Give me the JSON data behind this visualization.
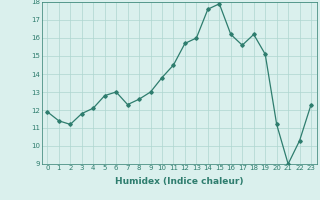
{
  "x": [
    0,
    1,
    2,
    3,
    4,
    5,
    6,
    7,
    8,
    9,
    10,
    11,
    12,
    13,
    14,
    15,
    16,
    17,
    18,
    19,
    20,
    21,
    22,
    23
  ],
  "y": [
    11.9,
    11.4,
    11.2,
    11.8,
    12.1,
    12.8,
    13.0,
    12.3,
    12.6,
    13.0,
    13.8,
    14.5,
    15.7,
    16.0,
    17.6,
    17.9,
    16.2,
    15.6,
    16.2,
    15.1,
    11.2,
    9.0,
    10.3,
    12.3
  ],
  "line_color": "#2e7d6e",
  "marker": "D",
  "marker_size": 1.8,
  "bg_color": "#daf0ed",
  "grid_color": "#aed6d0",
  "xlabel": "Humidex (Indice chaleur)",
  "ylim": [
    9,
    18
  ],
  "xlim": [
    -0.5,
    23.5
  ],
  "yticks": [
    9,
    10,
    11,
    12,
    13,
    14,
    15,
    16,
    17,
    18
  ],
  "xticks": [
    0,
    1,
    2,
    3,
    4,
    5,
    6,
    7,
    8,
    9,
    10,
    11,
    12,
    13,
    14,
    15,
    16,
    17,
    18,
    19,
    20,
    21,
    22,
    23
  ],
  "tick_fontsize": 5.0,
  "xlabel_fontsize": 6.5,
  "linewidth": 0.9
}
